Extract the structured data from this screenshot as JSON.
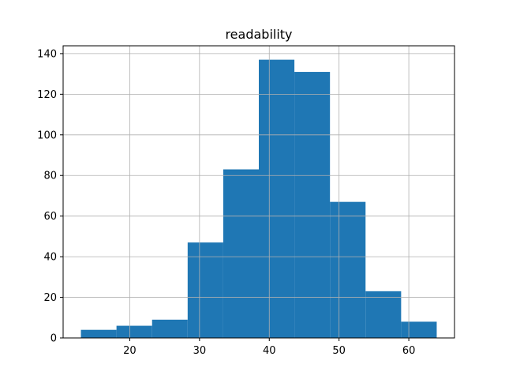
{
  "chart_data": {
    "type": "bar",
    "title": "readability",
    "xlabel": "",
    "ylabel": "",
    "bins": [
      {
        "x0": 13.0,
        "x1": 18.1,
        "count": 4
      },
      {
        "x0": 18.1,
        "x1": 23.2,
        "count": 6
      },
      {
        "x0": 23.2,
        "x1": 28.3,
        "count": 9
      },
      {
        "x0": 28.3,
        "x1": 33.4,
        "count": 47
      },
      {
        "x0": 33.4,
        "x1": 38.5,
        "count": 83
      },
      {
        "x0": 38.5,
        "x1": 43.6,
        "count": 137
      },
      {
        "x0": 43.6,
        "x1": 48.7,
        "count": 131
      },
      {
        "x0": 48.7,
        "x1": 53.8,
        "count": 67
      },
      {
        "x0": 53.8,
        "x1": 58.9,
        "count": 23
      },
      {
        "x0": 58.9,
        "x1": 64.0,
        "count": 8
      }
    ],
    "xlim": [
      10.45,
      66.55
    ],
    "ylim": [
      0,
      143.85
    ],
    "xticks": [
      20,
      30,
      40,
      50,
      60
    ],
    "yticks": [
      0,
      20,
      40,
      60,
      80,
      100,
      120,
      140
    ],
    "grid": true,
    "bar_color": "#1f77b4"
  }
}
